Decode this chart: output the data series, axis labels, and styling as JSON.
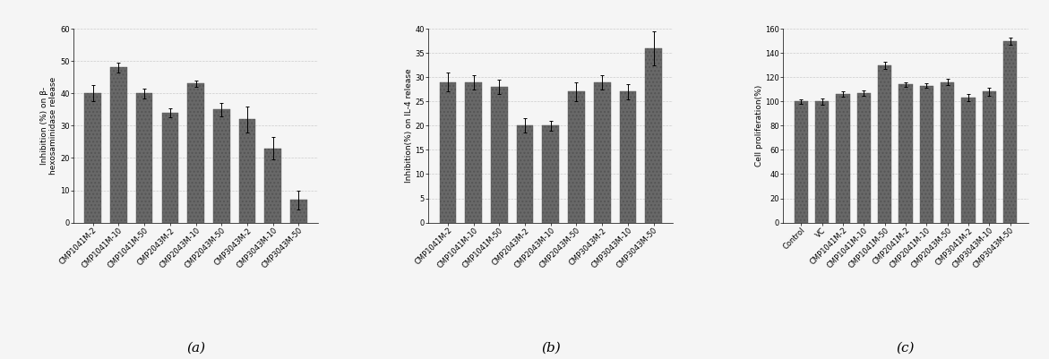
{
  "chart_a": {
    "ylabel": "Inhibition (%) on β-\nhexosaminidase release",
    "ylim": [
      0,
      60
    ],
    "yticks": [
      0,
      10,
      20,
      30,
      40,
      50,
      60
    ],
    "categories": [
      "CMP1041M-2",
      "CMP1041M-10",
      "CMP1041M-50",
      "CMP2043M-2",
      "CMP2043M-10",
      "CMP2043M-50",
      "CMP3043M-2",
      "CMP3043M-10",
      "CMP3043M-50"
    ],
    "values": [
      40,
      48,
      40,
      34,
      43,
      35,
      32,
      23,
      7
    ],
    "errors": [
      2.5,
      1.5,
      1.5,
      1.5,
      1.0,
      2.0,
      4.0,
      3.5,
      3.0
    ],
    "label": "(a)"
  },
  "chart_b": {
    "ylabel": "Inhibition(%) on IL-4 release",
    "ylim": [
      0,
      40
    ],
    "yticks": [
      0,
      5,
      10,
      15,
      20,
      25,
      30,
      35,
      40
    ],
    "categories": [
      "CMP1041M-2",
      "CMP1041M-10",
      "CMP1041M-50",
      "CMP2043M-2",
      "CMP2043M-10",
      "CMP2043M-50",
      "CMP3043M-2",
      "CMP3043M-10",
      "CMP3043M-50"
    ],
    "values": [
      29,
      29,
      28,
      20,
      20,
      27,
      29,
      27,
      36
    ],
    "errors": [
      2.0,
      1.5,
      1.5,
      1.5,
      1.0,
      2.0,
      1.5,
      1.5,
      3.5
    ],
    "label": "(b)"
  },
  "chart_c": {
    "ylabel": "Cell proliferation(%)",
    "ylim": [
      0,
      160
    ],
    "yticks": [
      0,
      20,
      40,
      60,
      80,
      100,
      120,
      140,
      160
    ],
    "categories": [
      "Control",
      "VC",
      "CMP1041M-2",
      "CMP1041M-10",
      "CMP1041M-50",
      "CMP2041M-2",
      "CMP2041M-10",
      "CMP2043M-50",
      "CMP3041M-2",
      "CMP3043M-10",
      "CMP3043M-50"
    ],
    "values": [
      100,
      100,
      106,
      107,
      130,
      114,
      113,
      116,
      103,
      108,
      150
    ],
    "errors": [
      2.0,
      2.5,
      2.0,
      2.0,
      3.0,
      2.0,
      2.0,
      2.5,
      3.0,
      3.5,
      3.0
    ],
    "label": "(c)"
  },
  "bar_color": "#686868",
  "background_color": "#f5f5f5",
  "grid_color": "#cccccc",
  "tick_label_fontsize": 6,
  "axis_label_fontsize": 6.5,
  "subplot_label_fontsize": 11
}
